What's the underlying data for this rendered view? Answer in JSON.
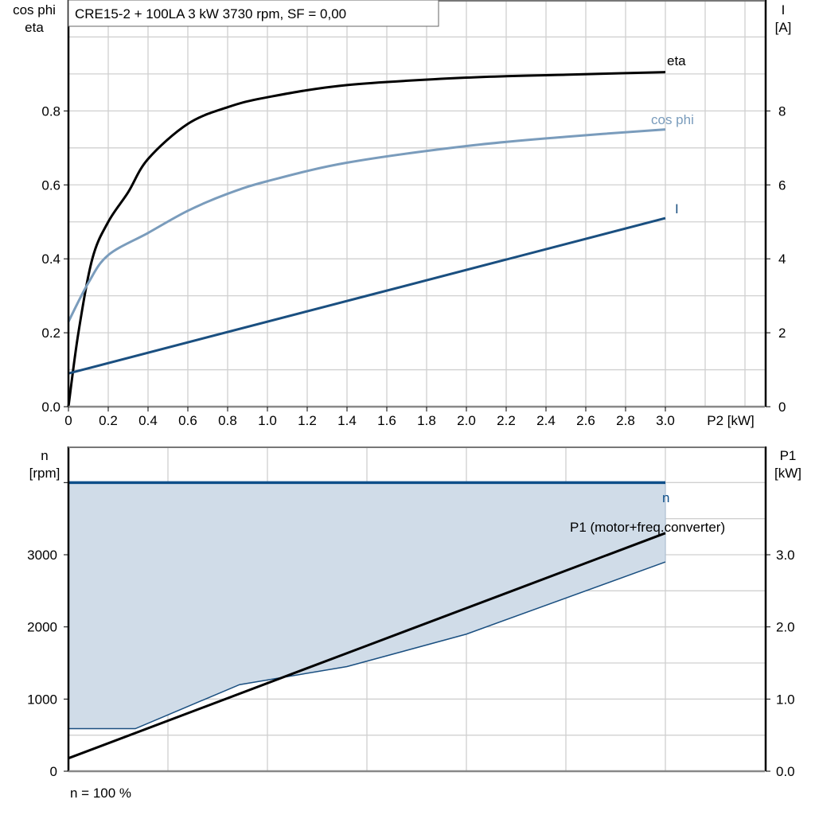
{
  "chart_data": [
    {
      "type": "line",
      "title": "CRE15-2 + 100LA   3 kW   3730 rpm, SF = 0,00",
      "xlabel": "P2 [kW]",
      "ylabel_left": [
        "cos phi",
        "eta"
      ],
      "ylabel_right": [
        "I",
        "[A]"
      ],
      "xlim": [
        0,
        3.5
      ],
      "ylim_left": [
        0,
        1.1
      ],
      "ylim_right": [
        0,
        11
      ],
      "x_ticks": [
        "0",
        "0.2",
        "0.4",
        "0.6",
        "0.8",
        "1.0",
        "1.2",
        "1.4",
        "1.6",
        "1.8",
        "2.0",
        "2.2",
        "2.4",
        "2.6",
        "2.8",
        "3.0"
      ],
      "y_ticks_left": [
        "0.0",
        "0.2",
        "0.4",
        "0.6",
        "0.8"
      ],
      "y_ticks_right": [
        "0",
        "2",
        "4",
        "6",
        "8"
      ],
      "grid": true,
      "series": [
        {
          "name": "eta",
          "axis": "left",
          "color": "#000000",
          "x": [
            0,
            0.05,
            0.12,
            0.2,
            0.3,
            0.4,
            0.6,
            0.8,
            1.0,
            1.4,
            2.0,
            2.5,
            3.0
          ],
          "y": [
            0,
            0.2,
            0.4,
            0.5,
            0.58,
            0.67,
            0.765,
            0.81,
            0.837,
            0.87,
            0.89,
            0.898,
            0.905
          ]
        },
        {
          "name": "cos phi",
          "axis": "left",
          "color": "#7a9cbc",
          "x": [
            0,
            0.1,
            0.2,
            0.4,
            0.6,
            0.8,
            1.0,
            1.4,
            2.0,
            2.5,
            3.0
          ],
          "y": [
            0.23,
            0.335,
            0.41,
            0.47,
            0.53,
            0.576,
            0.61,
            0.66,
            0.705,
            0.73,
            0.75
          ]
        },
        {
          "name": "I",
          "axis": "right",
          "color": "#1a4f80",
          "x": [
            0,
            3.0
          ],
          "y": [
            0.9,
            5.1
          ]
        }
      ]
    },
    {
      "type": "line",
      "footer": "n = 100 %",
      "ylabel_left": [
        "n",
        "[rpm]"
      ],
      "ylabel_right": [
        "P1",
        "[kW]"
      ],
      "xlim": [
        0,
        3.5
      ],
      "ylim_left": [
        0,
        4500
      ],
      "ylim_right": [
        0,
        4.5
      ],
      "y_ticks_left": [
        "0",
        "1000",
        "2000",
        "3000"
      ],
      "y_ticks_right": [
        "0.0",
        "1.0",
        "2.0",
        "3.0"
      ],
      "grid": true,
      "fill_color": "#d0dce8",
      "operating_range": {
        "upper": {
          "x": [
            0,
            3.0
          ],
          "y": [
            4000,
            4000
          ]
        },
        "lower": {
          "x": [
            0,
            0.336,
            0.86,
            1.4,
            2.0,
            3.0
          ],
          "y": [
            590,
            590,
            1200,
            1450,
            1900,
            2900
          ]
        }
      },
      "series": [
        {
          "name": "n",
          "axis": "left",
          "color": "#0e4f8a",
          "x": [
            0,
            3.0
          ],
          "y": [
            4000,
            4000
          ]
        },
        {
          "name": "P1 (motor+freq.converter)",
          "axis": "right",
          "color": "#000000",
          "x": [
            0,
            3.0
          ],
          "y": [
            0.18,
            3.3
          ]
        }
      ]
    }
  ]
}
